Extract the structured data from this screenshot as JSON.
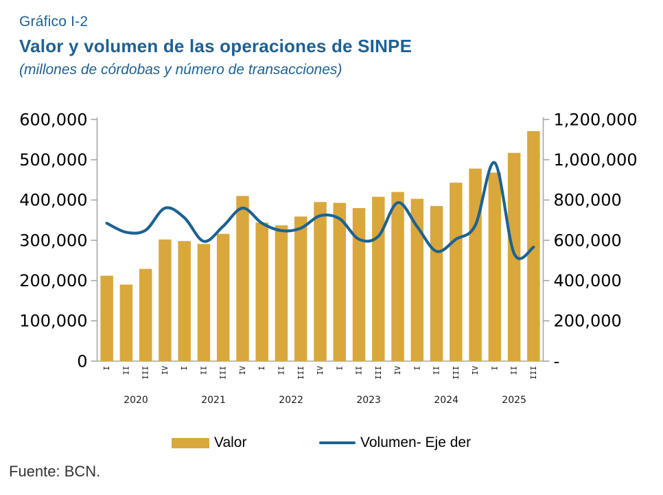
{
  "header": {
    "label": "Gráfico I-2",
    "title": "Valor y volumen de las operaciones de SINPE",
    "subtitle": "(millones de córdobas y número de transacciones)"
  },
  "legend": {
    "valor": "Valor",
    "volumen": "Volumen- Eje der"
  },
  "footer": {
    "source": "Fuente: BCN."
  },
  "colors": {
    "bar_gold": "#D9A73C",
    "line_blue": "#1C6291",
    "title_blue": "#1E6193",
    "axis_gray": "#A6A6A6",
    "label_dark": "#1a1a1a"
  },
  "chart_data": {
    "type": "bar+line",
    "title": "Valor y volumen de las operaciones de SINPE",
    "subtitle": "(millones de córdobas y número de transacciones)",
    "grid": false,
    "legend_position": "bottom",
    "years": [
      {
        "label": "2020",
        "quarters": [
          "I",
          "II",
          "III",
          "IV"
        ]
      },
      {
        "label": "2021",
        "quarters": [
          "I",
          "II",
          "III",
          "IV"
        ]
      },
      {
        "label": "2022",
        "quarters": [
          "I",
          "II",
          "III",
          "IV"
        ]
      },
      {
        "label": "2023",
        "quarters": [
          "I",
          "II",
          "III",
          "IV"
        ]
      },
      {
        "label": "2024",
        "quarters": [
          "I",
          "II",
          "III",
          "IV"
        ]
      },
      {
        "label": "2025",
        "quarters": [
          "I",
          "II",
          "III"
        ]
      }
    ],
    "series": [
      {
        "name": "Valor",
        "type": "bar",
        "axis": "left",
        "values": [
          212000,
          190000,
          229000,
          302000,
          298000,
          291000,
          316000,
          410000,
          344000,
          337000,
          359000,
          395000,
          393000,
          380000,
          408000,
          420000,
          403000,
          385000,
          443000,
          478000,
          468000,
          517000,
          571000
        ]
      },
      {
        "name": "Volumen- Eje der",
        "type": "line",
        "axis": "right",
        "values": [
          685000,
          640000,
          650000,
          760000,
          712000,
          595000,
          670000,
          760000,
          685000,
          648000,
          660000,
          722000,
          707000,
          605000,
          620000,
          787000,
          668000,
          545000,
          605000,
          675000,
          985000,
          534000,
          566000
        ]
      }
    ],
    "left_axis": {
      "min": 0,
      "max": 600000,
      "ticks": [
        "600,000",
        "500,000",
        "400,000",
        "300,000",
        "200,000",
        "100,000",
        "0"
      ]
    },
    "right_axis": {
      "min": 0,
      "max": 1200000,
      "ticks": [
        "1,200,000",
        "1,000,000",
        "800,000",
        "600,000",
        "400,000",
        "200,000",
        "-"
      ]
    }
  }
}
